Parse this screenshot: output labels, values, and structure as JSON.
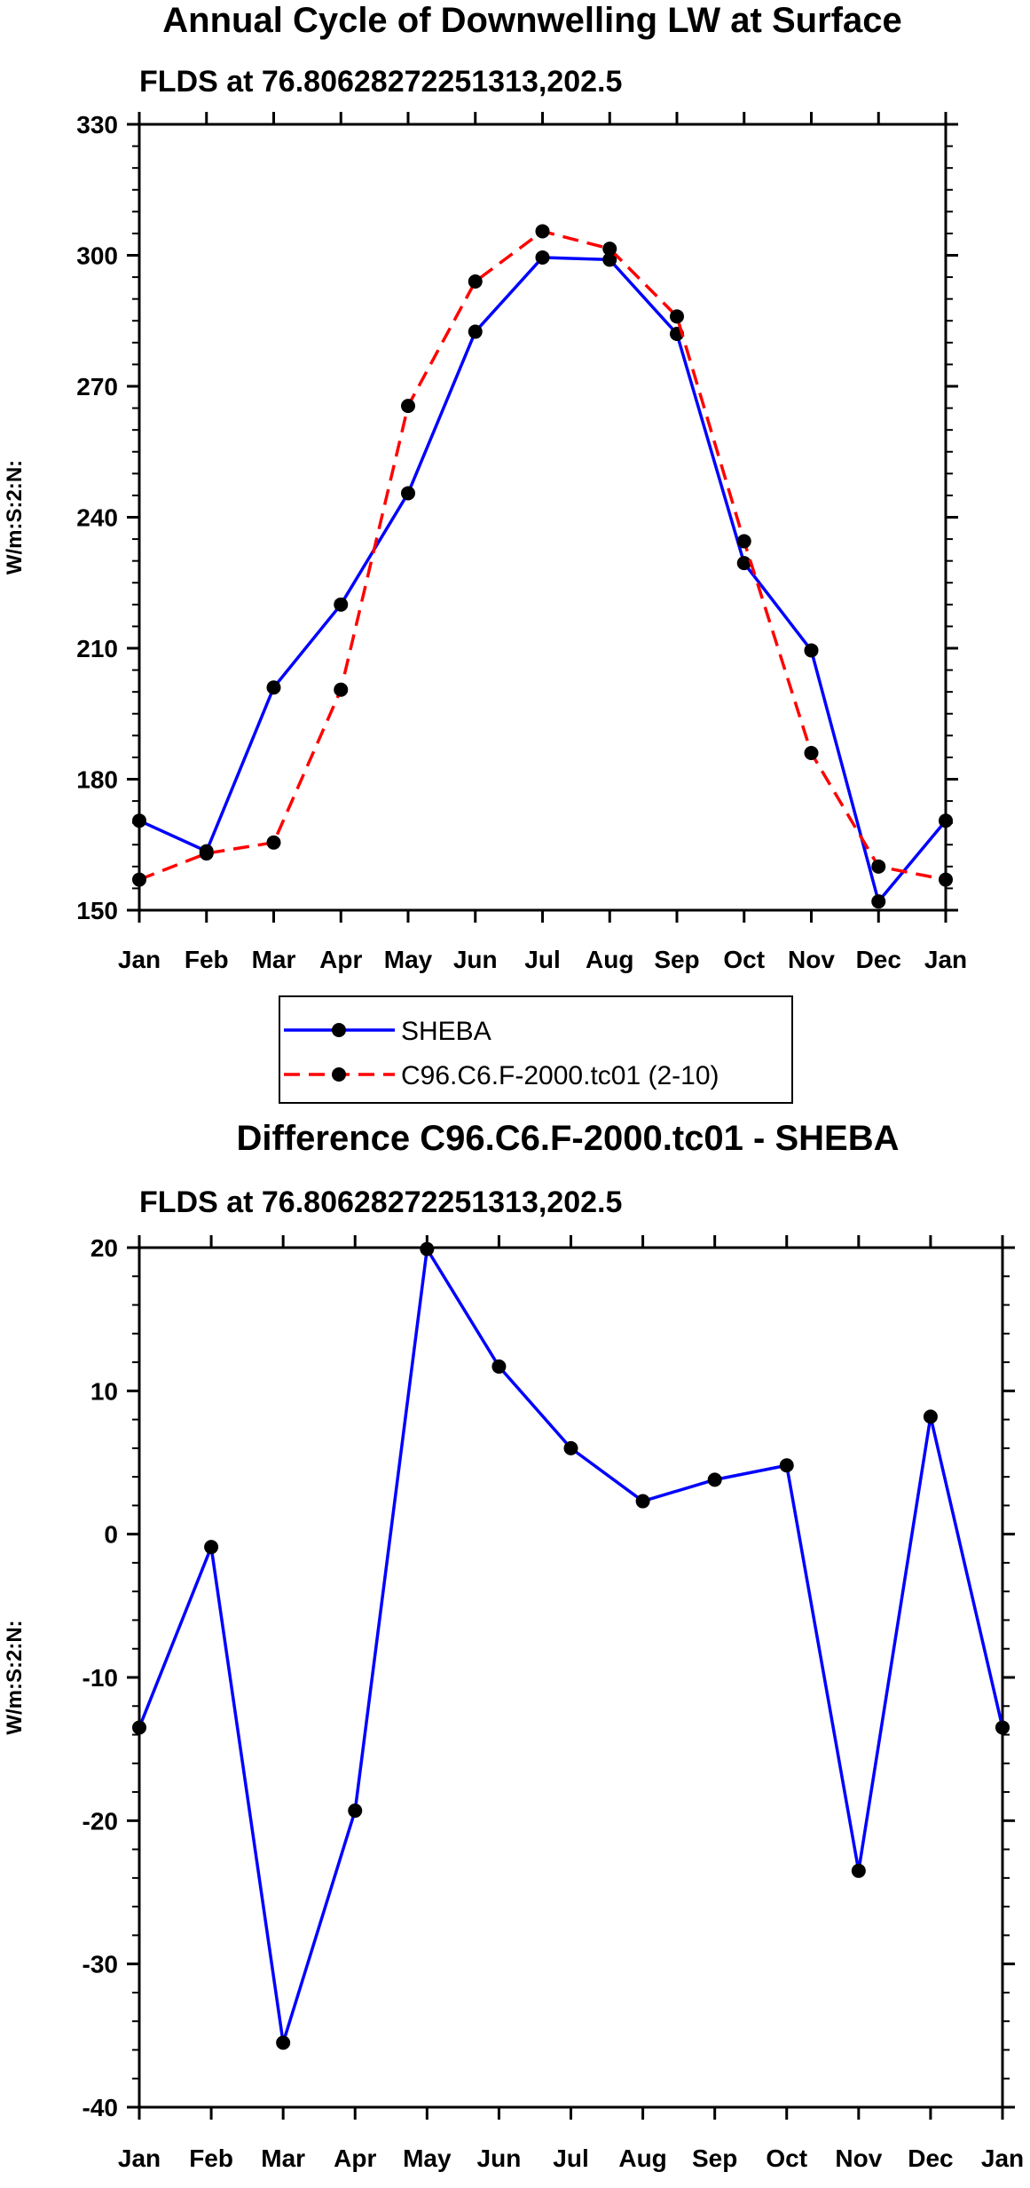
{
  "chart_data": [
    {
      "type": "line",
      "title": "Annual Cycle of Downwelling LW at Surface",
      "subtitle": "FLDS at 76.80628272251313,202.5",
      "ylabel": "W/m:S:2:N:",
      "xlabel": "",
      "categories": [
        "Jan",
        "Feb",
        "Mar",
        "Apr",
        "May",
        "Jun",
        "Jul",
        "Aug",
        "Sep",
        "Oct",
        "Nov",
        "Dec",
        "Jan"
      ],
      "ylim": [
        150,
        330
      ],
      "yticks": [
        "150",
        "180",
        "210",
        "240",
        "270",
        "300",
        "330"
      ],
      "series": [
        {
          "name": "SHEBA",
          "color": "#0000ff",
          "dash": "solid",
          "values": [
            170.5,
            163.5,
            201,
            220,
            245.5,
            282.5,
            299.5,
            299,
            282,
            229.5,
            209.5,
            152,
            170.5
          ]
        },
        {
          "name": "C96.C6.F-2000.tc01 (2-10)",
          "color": "#ff0000",
          "dash": "dashed",
          "values": [
            157,
            163,
            165.5,
            200.5,
            265.5,
            294,
            305.5,
            301.5,
            286,
            234.5,
            186,
            160,
            157
          ]
        }
      ],
      "legend_position": "bottom"
    },
    {
      "type": "line",
      "title": "Difference C96.C6.F-2000.tc01 - SHEBA",
      "subtitle": "FLDS at 76.80628272251313,202.5",
      "ylabel": "W/m:S:2:N:",
      "xlabel": "",
      "categories": [
        "Jan",
        "Feb",
        "Mar",
        "Apr",
        "May",
        "Jun",
        "Jul",
        "Aug",
        "Sep",
        "Oct",
        "Nov",
        "Dec",
        "Jan"
      ],
      "ylim": [
        -40,
        20
      ],
      "yticks": [
        "-40",
        "-30",
        "-20",
        "-10",
        "0",
        "10",
        "20"
      ],
      "series": [
        {
          "name": "Difference",
          "color": "#0000ff",
          "dash": "solid",
          "values": [
            -13.5,
            -0.9,
            -35.5,
            -19.3,
            19.9,
            11.7,
            6,
            2.3,
            3.8,
            4.8,
            -23.5,
            8.2,
            -13.5
          ]
        }
      ]
    }
  ]
}
